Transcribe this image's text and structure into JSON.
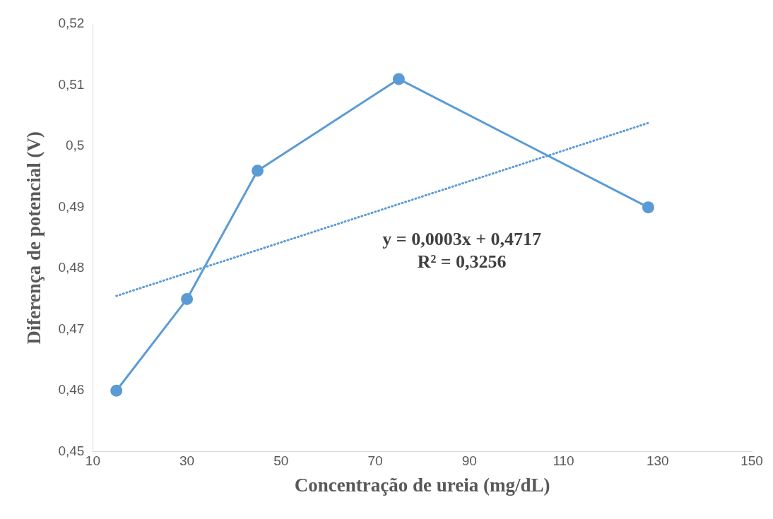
{
  "chart_data": {
    "type": "line",
    "xlabel": "Concentração de ureia (mg/dL)",
    "ylabel": "Diferença de potencial (V)",
    "annotations": [
      "y = 0,0003x + 0,4717",
      "R² = 0,3256"
    ],
    "x": [
      15,
      30,
      45,
      75,
      128
    ],
    "series": [
      {
        "color": "#5b9bd5",
        "values": [
          0.46,
          0.475,
          0.496,
          0.511,
          0.49
        ],
        "marker": "circle",
        "line_style": "solid"
      },
      {
        "type": "line",
        "x": [
          15,
          128
        ],
        "color": "#5b9bd5",
        "values": [
          0.4755,
          0.5038
        ],
        "marker": "none",
        "line_style": "dotted"
      }
    ],
    "xlim": [
      10,
      150
    ],
    "xticks": [
      10,
      30,
      50,
      70,
      90,
      110,
      130,
      150
    ],
    "ylim": [
      0.45,
      0.52
    ],
    "yticks": [
      {
        "value": 0.45,
        "label": "0,45"
      },
      {
        "value": 0.46,
        "label": "0,46"
      },
      {
        "value": 0.47,
        "label": "0,47"
      },
      {
        "value": 0.48,
        "label": "0,48"
      },
      {
        "value": 0.49,
        "label": "0,49"
      },
      {
        "value": 0.5,
        "label": "0,5"
      },
      {
        "value": 0.51,
        "label": "0,51"
      },
      {
        "value": 0.52,
        "label": "0,52"
      }
    ],
    "grid": false,
    "legend": false
  }
}
